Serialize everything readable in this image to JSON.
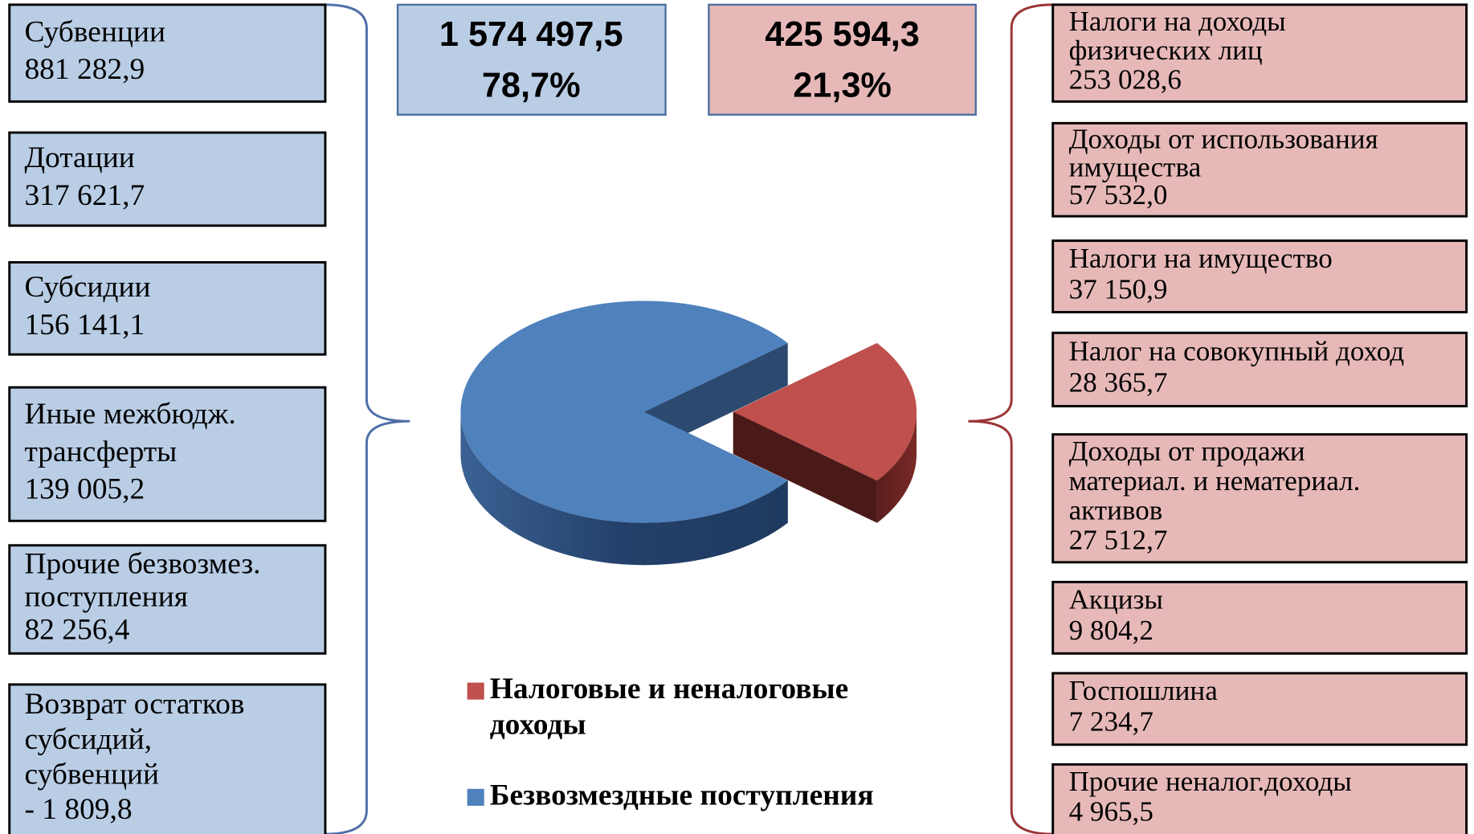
{
  "chart_data": {
    "type": "pie",
    "categories": [
      "Налоговые  и неналоговые доходы",
      "Безвозмездные поступления"
    ],
    "values": [
      425594.3,
      1574497.5
    ],
    "value_labels": [
      "425 594,3",
      "1 574 497,5"
    ],
    "percents": [
      21.3,
      78.7
    ],
    "percent_labels": [
      "21,3%",
      "78,7%"
    ],
    "colors": [
      "#c0504d",
      "#4f81bd"
    ],
    "legend": "bottom"
  },
  "left_boxes": [
    {
      "lines": [
        "Субвенции"
      ],
      "value": "881 282,9"
    },
    {
      "lines": [
        "Дотации"
      ],
      "value": "317 621,7"
    },
    {
      "lines": [
        "Субсидии"
      ],
      "value": "156 141,1"
    },
    {
      "lines": [
        "Иные межбюдж.",
        "трансферты"
      ],
      "value": "139 005,2"
    },
    {
      "lines": [
        "Прочие безвозмез.",
        "поступления"
      ],
      "value": "82 256,4"
    },
    {
      "lines": [
        "Возврат остатков",
        "субсидий,",
        "субвенций"
      ],
      "value": "- 1 809,8"
    }
  ],
  "right_boxes": [
    {
      "lines": [
        "Налоги на доходы",
        "физических лиц"
      ],
      "value": "253 028,6"
    },
    {
      "lines": [
        "Доходы от использования",
        "имущества"
      ],
      "value": "57 532,0"
    },
    {
      "lines": [
        "Налоги на имущество"
      ],
      "value": "37 150,9"
    },
    {
      "lines": [
        "Налог на совокупный доход"
      ],
      "value": "28 365,7"
    },
    {
      "lines": [
        "Доходы от продажи",
        "материал. и нематериал.",
        "активов"
      ],
      "value": "27 512,7"
    },
    {
      "lines": [
        "Акцизы"
      ],
      "value": "9 804,2"
    },
    {
      "lines": [
        "Госпошлина"
      ],
      "value": "7 234,7"
    },
    {
      "lines": [
        "Прочие неналог.доходы"
      ],
      "value": "4 965,5"
    }
  ]
}
